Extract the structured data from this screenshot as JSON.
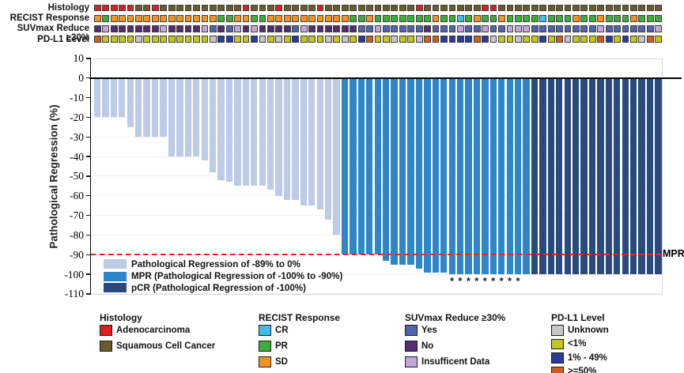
{
  "annotations": {
    "rows": [
      {
        "key": "histology",
        "label": "Histology",
        "values": [
          "A",
          "A",
          "A",
          "A",
          "A",
          "S",
          "S",
          "A",
          "S",
          "S",
          "S",
          "S",
          "S",
          "S",
          "S",
          "S",
          "S",
          "S",
          "A",
          "S",
          "S",
          "S",
          "A",
          "S",
          "S",
          "S",
          "S",
          "A",
          "S",
          "S",
          "S",
          "S",
          "S",
          "S",
          "S",
          "S",
          "S",
          "S",
          "S",
          "A",
          "S",
          "S",
          "S",
          "S",
          "S",
          "S",
          "S",
          "A",
          "A",
          "S",
          "S",
          "S",
          "S",
          "S",
          "S",
          "S",
          "S",
          "S",
          "S",
          "S",
          "S",
          "S",
          "S",
          "S",
          "S",
          "S",
          "S",
          "S",
          "S"
        ]
      },
      {
        "key": "recist",
        "label": "RECIST Response",
        "values": [
          "O",
          "G",
          "O",
          "O",
          "O",
          "O",
          "O",
          "O",
          "O",
          "O",
          "O",
          "O",
          "O",
          "O",
          "O",
          "G",
          "G",
          "O",
          "O",
          "G",
          "G",
          "O",
          "O",
          "O",
          "O",
          "O",
          "O",
          "O",
          "O",
          "O",
          "O",
          "G",
          "G",
          "O",
          "G",
          "G",
          "G",
          "G",
          "G",
          "G",
          "G",
          "O",
          "G",
          "G",
          "C",
          "G",
          "O",
          "G",
          "G",
          "O",
          "G",
          "G",
          "G",
          "G",
          "C",
          "G",
          "G",
          "G",
          "O",
          "G",
          "G",
          "O",
          "G",
          "G",
          "G",
          "O",
          "G",
          "G",
          "G"
        ]
      },
      {
        "key": "suvmax",
        "label": "SUVmax Reduce ≥30%",
        "values": [
          "N",
          "I",
          "N",
          "N",
          "N",
          "N",
          "N",
          "N",
          "I",
          "N",
          "N",
          "N",
          "N",
          "I",
          "Y",
          "N",
          "Y",
          "I",
          "N",
          "I",
          "N",
          "N",
          "N",
          "N",
          "Y",
          "I",
          "N",
          "N",
          "N",
          "N",
          "N",
          "N",
          "Y",
          "Y",
          "I",
          "Y",
          "Y",
          "Y",
          "Y",
          "Y",
          "N",
          "Y",
          "Y",
          "Y",
          "I",
          "Y",
          "Y",
          "I",
          "Y",
          "Y",
          "I",
          "I",
          "I",
          "Y",
          "Y",
          "Y",
          "Y",
          "Y",
          "Y",
          "Y",
          "Y",
          "I",
          "Y",
          "Y",
          "Y",
          "Y",
          "Y",
          "Y",
          "I"
        ]
      },
      {
        "key": "pdl1",
        "label": "PD-L1 Level",
        "values": [
          "H",
          "L",
          "L",
          "L",
          "L",
          "U",
          "L",
          "L",
          "L",
          "L",
          "L",
          "L",
          "L",
          "L",
          "U",
          "M",
          "M",
          "L",
          "L",
          "M",
          "U",
          "L",
          "U",
          "L",
          "M",
          "L",
          "L",
          "L",
          "U",
          "L",
          "U",
          "L",
          "M",
          "H",
          "L",
          "L",
          "U",
          "L",
          "L",
          "U",
          "H",
          "H",
          "M",
          "M",
          "M",
          "M",
          "H",
          "M",
          "U",
          "L",
          "L",
          "U",
          "L",
          "L",
          "M",
          "L",
          "H",
          "U",
          "L",
          "L",
          "L",
          "H",
          "M",
          "L",
          "M",
          "L",
          "U",
          "H",
          "L"
        ]
      }
    ],
    "color_map": {
      "histology": {
        "A": "#dd1f21",
        "S": "#6c5a27"
      },
      "recist": {
        "O": "#f6921e",
        "G": "#3ead3b",
        "C": "#41bee8"
      },
      "suvmax": {
        "Y": "#5063af",
        "N": "#542c70",
        "I": "#c3a7d8"
      },
      "pdl1": {
        "U": "#c7c7c7",
        "L": "#c3c520",
        "M": "#2a3a96",
        "H": "#cb5e20"
      }
    }
  },
  "chart_data": {
    "type": "bar",
    "ylabel": "Pathological Regression (%)",
    "ylim": [
      -110,
      10
    ],
    "yticks": [
      10,
      0,
      -10,
      -20,
      -30,
      -40,
      -50,
      -60,
      -70,
      -80,
      -90,
      -100,
      -110
    ],
    "threshold_value": -90,
    "threshold_label": "MPR",
    "threshold_color": "#e8251d",
    "marker_glyph": "*",
    "asterisk_indices": [
      43,
      44,
      45,
      46,
      47,
      48,
      49,
      50,
      51
    ],
    "categories": [
      "reg",
      "reg",
      "reg",
      "reg",
      "reg",
      "reg",
      "reg",
      "reg",
      "reg",
      "reg",
      "reg",
      "reg",
      "reg",
      "reg",
      "reg",
      "reg",
      "reg",
      "reg",
      "reg",
      "reg",
      "reg",
      "reg",
      "reg",
      "reg",
      "reg",
      "reg",
      "reg",
      "reg",
      "reg",
      "reg",
      "mpr",
      "mpr",
      "mpr",
      "mpr",
      "mpr",
      "mpr",
      "mpr",
      "mpr",
      "mpr",
      "mpr",
      "mpr",
      "mpr",
      "mpr",
      "mpr",
      "mpr",
      "mpr",
      "mpr",
      "mpr",
      "mpr",
      "mpr",
      "mpr",
      "mpr",
      "mpr",
      "pcr",
      "pcr",
      "pcr",
      "pcr",
      "pcr",
      "pcr",
      "pcr",
      "pcr",
      "pcr",
      "pcr",
      "pcr",
      "pcr",
      "pcr",
      "pcr",
      "pcr",
      "pcr"
    ],
    "values": [
      -20,
      -20,
      -20,
      -20,
      -25,
      -30,
      -30,
      -30,
      -30,
      -40,
      -40,
      -40,
      -40,
      -42,
      -48,
      -52,
      -53,
      -55,
      -55,
      -55,
      -55,
      -57,
      -60,
      -62,
      -62,
      -65,
      -65,
      -67,
      -72,
      -80,
      -90,
      -90,
      -90,
      -90,
      -90,
      -93,
      -95,
      -95,
      -95,
      -97,
      -99,
      -99,
      -99,
      -100,
      -100,
      -100,
      -100,
      -100,
      -100,
      -100,
      -100,
      -100,
      -100,
      -100,
      -100,
      -100,
      -100,
      -100,
      -100,
      -100,
      -100,
      -100,
      -100,
      -100,
      -100,
      -100,
      -100,
      -100,
      -100
    ],
    "series_colors": {
      "reg": "#bccbe8",
      "mpr": "#2e86c9",
      "pcr": "#2a4a7c"
    }
  },
  "plot_legend": {
    "items": [
      {
        "label": "Pathological Regression of -89% to 0%",
        "color": "#bccbe8"
      },
      {
        "label": "MPR (Pathological Regression of -100% to -90%)",
        "color": "#2e86c9"
      },
      {
        "label": "pCR (Pathological Regression of -100%)",
        "color": "#2a4a7c"
      }
    ]
  },
  "bottom_legends": [
    {
      "title": "Histology",
      "items": [
        {
          "label": "Adenocarcinoma",
          "color": "#dd1f21"
        },
        {
          "label": "Squamous Cell Cancer",
          "color": "#6c5a27"
        }
      ]
    },
    {
      "title": "RECIST Response",
      "items": [
        {
          "label": "CR",
          "color": "#41bee8"
        },
        {
          "label": "PR",
          "color": "#3ead3b"
        },
        {
          "label": "SD",
          "color": "#f6921e"
        }
      ]
    },
    {
      "title": "SUVmax Reduce ≥30%",
      "items": [
        {
          "label": "Yes",
          "color": "#5063af"
        },
        {
          "label": "No",
          "color": "#542c70"
        },
        {
          "label": "Insufficent Data",
          "color": "#c3a7d8"
        }
      ]
    },
    {
      "title": "PD-L1 Level",
      "items": [
        {
          "label": "Unknown",
          "color": "#c7c7c7"
        },
        {
          "label": "<1%",
          "color": "#c3c520"
        },
        {
          "label": "1% - 49%",
          "color": "#2a3a96"
        },
        {
          "label": ">=50%",
          "color": "#cb5e20"
        }
      ]
    }
  ]
}
